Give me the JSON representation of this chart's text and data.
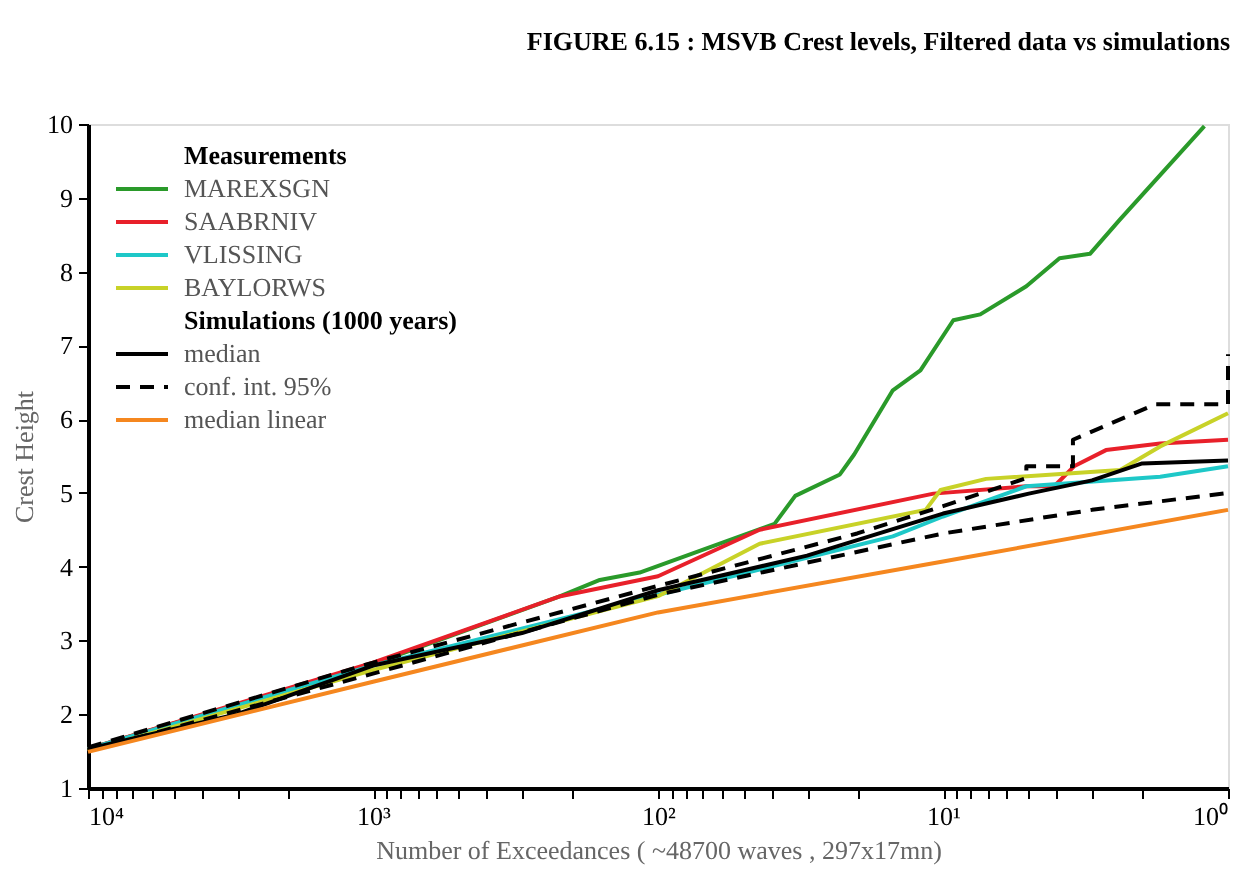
{
  "chart_data": {
    "type": "line",
    "title": "FIGURE 6.15 : MSVB Crest levels, Filtered data vs simulations",
    "xlabel": "Number of Exceedances ( ~48700 waves , 297x17mn)",
    "ylabel": "Crest Height",
    "log": "x",
    "grid": false,
    "legend": "top left",
    "xlim": [
      10000,
      1
    ],
    "ylim": [
      1,
      10
    ],
    "xticks": [
      {
        "value": 10000,
        "label": "10⁴"
      },
      {
        "value": 9000,
        "label": null
      },
      {
        "value": 8000,
        "label": null
      },
      {
        "value": 7000,
        "label": null
      },
      {
        "value": 6000,
        "label": null
      },
      {
        "value": 5000,
        "label": null
      },
      {
        "value": 4000,
        "label": null
      },
      {
        "value": 3000,
        "label": null
      },
      {
        "value": 2000,
        "label": null
      },
      {
        "value": 1000,
        "label": "10³"
      },
      {
        "value": 900,
        "label": null
      },
      {
        "value": 800,
        "label": null
      },
      {
        "value": 700,
        "label": null
      },
      {
        "value": 600,
        "label": null
      },
      {
        "value": 500,
        "label": null
      },
      {
        "value": 400,
        "label": null
      },
      {
        "value": 300,
        "label": null
      },
      {
        "value": 200,
        "label": null
      },
      {
        "value": 100,
        "label": "10²"
      },
      {
        "value": 90,
        "label": null
      },
      {
        "value": 80,
        "label": null
      },
      {
        "value": 70,
        "label": null
      },
      {
        "value": 60,
        "label": null
      },
      {
        "value": 50,
        "label": null
      },
      {
        "value": 40,
        "label": null
      },
      {
        "value": 30,
        "label": null
      },
      {
        "value": 20,
        "label": null
      },
      {
        "value": 10,
        "label": "10¹"
      },
      {
        "value": 9,
        "label": null
      },
      {
        "value": 8,
        "label": null
      },
      {
        "value": 7,
        "label": null
      },
      {
        "value": 6,
        "label": null
      },
      {
        "value": 5,
        "label": null
      },
      {
        "value": 4,
        "label": null
      },
      {
        "value": 3,
        "label": null
      },
      {
        "value": 2,
        "label": null
      },
      {
        "value": 1,
        "label": "10⁰"
      }
    ],
    "yticks": [
      1,
      2,
      3,
      4,
      5,
      6,
      7,
      8,
      9,
      10
    ],
    "annotations": [
      "Measurements",
      "Simulations (1000 years)"
    ],
    "series": [
      {
        "name": "MAREXSGN",
        "color": "#2a9a2a",
        "x": [
          10000,
          1000,
          220,
          160,
          116,
          39,
          33,
          23,
          20.5,
          15,
          12,
          9.2,
          7.4,
          5.1,
          3.9,
          3.05,
          2.4,
          1.21
        ],
        "values": [
          1.53,
          2.68,
          3.6,
          3.82,
          3.92,
          4.58,
          4.96,
          5.25,
          5.52,
          6.39,
          6.66,
          7.34,
          7.42,
          7.8,
          8.18,
          8.24,
          8.7,
          9.97
        ]
      },
      {
        "name": "SAABRNIV",
        "color": "#e8202a",
        "x": [
          10000,
          1000,
          220,
          100,
          44,
          10.8,
          5.1,
          4.07,
          3.47,
          2.68,
          1.73,
          1
        ],
        "values": [
          1.53,
          2.7,
          3.6,
          3.87,
          4.5,
          4.99,
          5.09,
          5.09,
          5.36,
          5.58,
          5.67,
          5.72
        ]
      },
      {
        "name": "VLISSING",
        "color": "#1ec8c8",
        "x": [
          10000,
          1000,
          100,
          15,
          10,
          5.1,
          1.73,
          1
        ],
        "values": [
          1.53,
          2.66,
          3.62,
          4.41,
          4.68,
          5.09,
          5.22,
          5.36
        ]
      },
      {
        "name": "BAYLORWS",
        "color": "#c8d228",
        "x": [
          10000,
          1000,
          100,
          44,
          11.5,
          10.2,
          7.06,
          2.39,
          1.73,
          1
        ],
        "values": [
          1.5,
          2.6,
          3.6,
          4.31,
          4.77,
          5.04,
          5.19,
          5.31,
          5.63,
          6.08
        ]
      },
      {
        "name": "median",
        "color": "#000000",
        "x": [
          10000,
          3000,
          1000,
          300,
          100,
          30,
          10,
          5,
          3,
          2,
          1
        ],
        "values": [
          1.53,
          2.0,
          2.66,
          3.1,
          3.68,
          4.15,
          4.72,
          4.99,
          5.17,
          5.4,
          5.44
        ]
      },
      {
        "name": "conf. int. 95%",
        "color": "#000000",
        "line_style": "dashed",
        "x": [
          10000,
          1000,
          100,
          20,
          10,
          5.1,
          5.1,
          3.5,
          3.5,
          1.8,
          1,
          1
        ],
        "values": [
          1.55,
          2.7,
          3.74,
          4.45,
          4.82,
          5.2,
          5.36,
          5.36,
          5.72,
          6.2,
          6.2,
          6.88
        ]
      },
      {
        "color": "#000000",
        "line_style": "dashed",
        "x": [
          10000,
          1000,
          100,
          10,
          3,
          1
        ],
        "values": [
          1.5,
          2.55,
          3.62,
          4.45,
          4.77,
          5.0
        ]
      },
      {
        "name": "median linear",
        "color": "#f5871f",
        "x": [
          10000,
          1000,
          100,
          10,
          1
        ],
        "values": [
          1.49,
          2.44,
          3.38,
          4.07,
          4.77
        ]
      }
    ]
  }
}
